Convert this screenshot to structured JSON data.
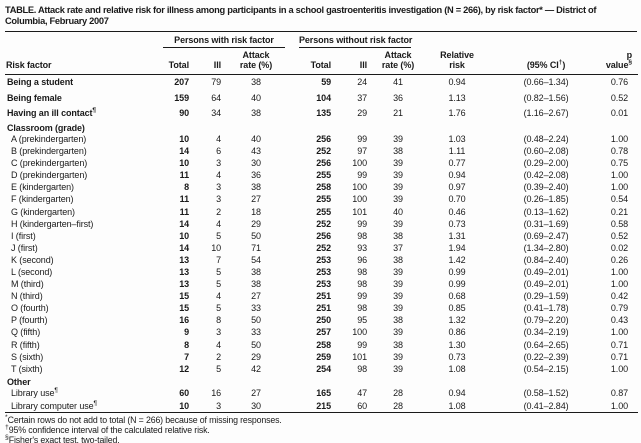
{
  "title": "TABLE. Attack rate and relative risk for illness among participants in a school gastroenteritis investigation (N = 266), by risk factor* — District of Columbia, February 2007",
  "table": {
    "group_with": "Persons with risk factor",
    "group_without": "Persons without risk factor",
    "headers": {
      "risk_factor": "Risk factor",
      "total": "Total",
      "ill": "Ill",
      "attack_line1": "Attack",
      "attack_line2": "rate (%)",
      "relative_line1": "Relative",
      "relative_line2": "risk",
      "ci_prefix": "(95% CI",
      "ci_marker": "†",
      "ci_suffix": ")",
      "pvalue_label": "p value",
      "pvalue_marker": "§"
    },
    "rows": [
      {
        "style": "top",
        "label": "Being a student",
        "marker": "",
        "cells": [
          "207",
          "79",
          "38",
          "59",
          "24",
          "41",
          "0.94",
          "(0.66–1.34)",
          "0.76"
        ]
      },
      {
        "style": "top",
        "label": "Being female",
        "marker": "",
        "cells": [
          "159",
          "64",
          "40",
          "104",
          "37",
          "36",
          "1.13",
          "(0.82–1.56)",
          "0.52"
        ]
      },
      {
        "style": "top",
        "label": "Having an ill contact",
        "marker": "¶",
        "cells": [
          "90",
          "34",
          "38",
          "135",
          "29",
          "21",
          "1.76",
          "(1.16–2.67)",
          "0.01"
        ]
      },
      {
        "style": "section",
        "label": "Classroom (grade)",
        "marker": "",
        "cells": []
      },
      {
        "style": "sub",
        "label": "A (prekindergarten)",
        "marker": "",
        "cells": [
          "10",
          "4",
          "40",
          "256",
          "99",
          "39",
          "1.03",
          "(0.48–2.24)",
          "1.00"
        ]
      },
      {
        "style": "sub",
        "label": "B (prekindergarten)",
        "marker": "",
        "cells": [
          "14",
          "6",
          "43",
          "252",
          "97",
          "38",
          "1.11",
          "(0.60–2.08)",
          "0.78"
        ]
      },
      {
        "style": "sub",
        "label": "C (prekindergarten)",
        "marker": "",
        "cells": [
          "10",
          "3",
          "30",
          "256",
          "100",
          "39",
          "0.77",
          "(0.29–2.00)",
          "0.75"
        ]
      },
      {
        "style": "sub",
        "label": "D (prekindergarten)",
        "marker": "",
        "cells": [
          "11",
          "4",
          "36",
          "255",
          "99",
          "39",
          "0.94",
          "(0.42–2.08)",
          "1.00"
        ]
      },
      {
        "style": "sub",
        "label": "E (kindergarten)",
        "marker": "",
        "cells": [
          "8",
          "3",
          "38",
          "258",
          "100",
          "39",
          "0.97",
          "(0.39–2.40)",
          "1.00"
        ]
      },
      {
        "style": "sub",
        "label": "F (kindergarten)",
        "marker": "",
        "cells": [
          "11",
          "3",
          "27",
          "255",
          "100",
          "39",
          "0.70",
          "(0.26–1.85)",
          "0.54"
        ]
      },
      {
        "style": "sub",
        "label": "G (kindergarten)",
        "marker": "",
        "cells": [
          "11",
          "2",
          "18",
          "255",
          "101",
          "40",
          "0.46",
          "(0.13–1.62)",
          "0.21"
        ]
      },
      {
        "style": "sub",
        "label": "H (kindergarten–first)",
        "marker": "",
        "cells": [
          "14",
          "4",
          "29",
          "252",
          "99",
          "39",
          "0.73",
          "(0.31–1.69)",
          "0.58"
        ]
      },
      {
        "style": "sub",
        "label": "I (first)",
        "marker": "",
        "cells": [
          "10",
          "5",
          "50",
          "256",
          "98",
          "38",
          "1.31",
          "(0.69–2.47)",
          "0.52"
        ]
      },
      {
        "style": "sub",
        "label": "J (first)",
        "marker": "",
        "cells": [
          "14",
          "10",
          "71",
          "252",
          "93",
          "37",
          "1.94",
          "(1.34–2.80)",
          "0.02"
        ]
      },
      {
        "style": "sub",
        "label": "K (second)",
        "marker": "",
        "cells": [
          "13",
          "7",
          "54",
          "253",
          "96",
          "38",
          "1.42",
          "(0.84–2.40)",
          "0.26"
        ]
      },
      {
        "style": "sub",
        "label": "L (second)",
        "marker": "",
        "cells": [
          "13",
          "5",
          "38",
          "253",
          "98",
          "39",
          "0.99",
          "(0.49–2.01)",
          "1.00"
        ]
      },
      {
        "style": "sub",
        "label": "M (third)",
        "marker": "",
        "cells": [
          "13",
          "5",
          "38",
          "253",
          "98",
          "39",
          "0.99",
          "(0.49–2.01)",
          "1.00"
        ]
      },
      {
        "style": "sub",
        "label": "N (third)",
        "marker": "",
        "cells": [
          "15",
          "4",
          "27",
          "251",
          "99",
          "39",
          "0.68",
          "(0.29–1.59)",
          "0.42"
        ]
      },
      {
        "style": "sub",
        "label": "O (fourth)",
        "marker": "",
        "cells": [
          "15",
          "5",
          "33",
          "251",
          "98",
          "39",
          "0.85",
          "(0.41–1.78)",
          "0.79"
        ]
      },
      {
        "style": "sub",
        "label": "P (fourth)",
        "marker": "",
        "cells": [
          "16",
          "8",
          "50",
          "250",
          "95",
          "38",
          "1.32",
          "(0.79–2.20)",
          "0.43"
        ]
      },
      {
        "style": "sub",
        "label": "Q (fifth)",
        "marker": "",
        "cells": [
          "9",
          "3",
          "33",
          "257",
          "100",
          "39",
          "0.86",
          "(0.34–2.19)",
          "1.00"
        ]
      },
      {
        "style": "sub",
        "label": "R (fifth)",
        "marker": "",
        "cells": [
          "8",
          "4",
          "50",
          "258",
          "99",
          "38",
          "1.30",
          "(0.64–2.65)",
          "0.71"
        ]
      },
      {
        "style": "sub",
        "label": "S (sixth)",
        "marker": "",
        "cells": [
          "7",
          "2",
          "29",
          "259",
          "101",
          "39",
          "0.73",
          "(0.22–2.39)",
          "0.71"
        ]
      },
      {
        "style": "sub",
        "label": "T (sixth)",
        "marker": "",
        "cells": [
          "12",
          "5",
          "42",
          "254",
          "98",
          "39",
          "1.08",
          "(0.54–2.15)",
          "1.00"
        ]
      },
      {
        "style": "section",
        "label": "Other",
        "marker": "",
        "cells": []
      },
      {
        "style": "sub",
        "label": "Library use",
        "marker": "¶",
        "cells": [
          "60",
          "16",
          "27",
          "165",
          "47",
          "28",
          "0.94",
          "(0.58–1.52)",
          "0.87"
        ]
      },
      {
        "style": "sub",
        "label": "Library computer use",
        "marker": "¶",
        "cells": [
          "10",
          "3",
          "30",
          "215",
          "60",
          "28",
          "1.08",
          "(0.41–2.84)",
          "1.00"
        ]
      }
    ]
  },
  "footnotes": [
    {
      "marker": "*",
      "text": "Certain rows do not add to total (N = 266) because of missing responses."
    },
    {
      "marker": "†",
      "text": "95% confidence interval of the calculated relative risk."
    },
    {
      "marker": "§",
      "text": "Fisher's exact test, two-tailed."
    },
    {
      "marker": "¶",
      "text": "Data available only for respondents identified through the questionnaire, not for those identified through the school nurse interview."
    }
  ],
  "colors": {
    "text": "#1a1a1a",
    "rule": "#1a1a1a",
    "background": "#fdfdfd"
  }
}
